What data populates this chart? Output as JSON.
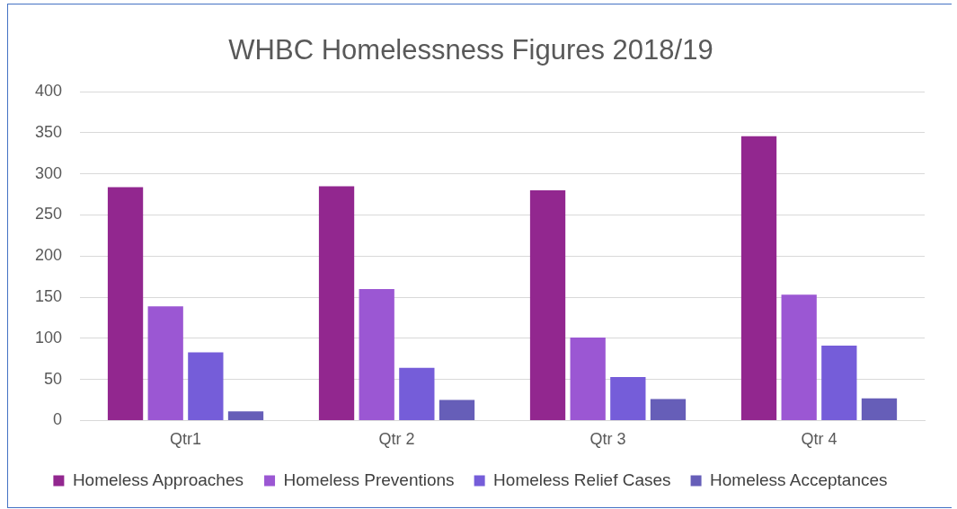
{
  "chart_data": {
    "type": "bar",
    "title": "WHBC Homelessness Figures 2018/19",
    "categories": [
      "Qtr1",
      "Qtr 2",
      "Qtr 3",
      "Qtr 4"
    ],
    "series": [
      {
        "name": "Homeless Approaches",
        "color": "#92278f",
        "values": [
          284,
          285,
          280,
          346
        ]
      },
      {
        "name": "Homeless Preventions",
        "color": "#9b57d3",
        "values": [
          139,
          160,
          101,
          153
        ]
      },
      {
        "name": "Homeless Relief Cases",
        "color": "#755dd9",
        "values": [
          83,
          64,
          53,
          91
        ]
      },
      {
        "name": "Homeless Acceptances",
        "color": "#665eb8",
        "values": [
          11,
          25,
          26,
          27
        ]
      }
    ],
    "ylim": [
      0,
      400
    ],
    "yticks": [
      0,
      50,
      100,
      150,
      200,
      250,
      300,
      350,
      400
    ],
    "grid": "y",
    "legend": "bottom"
  }
}
